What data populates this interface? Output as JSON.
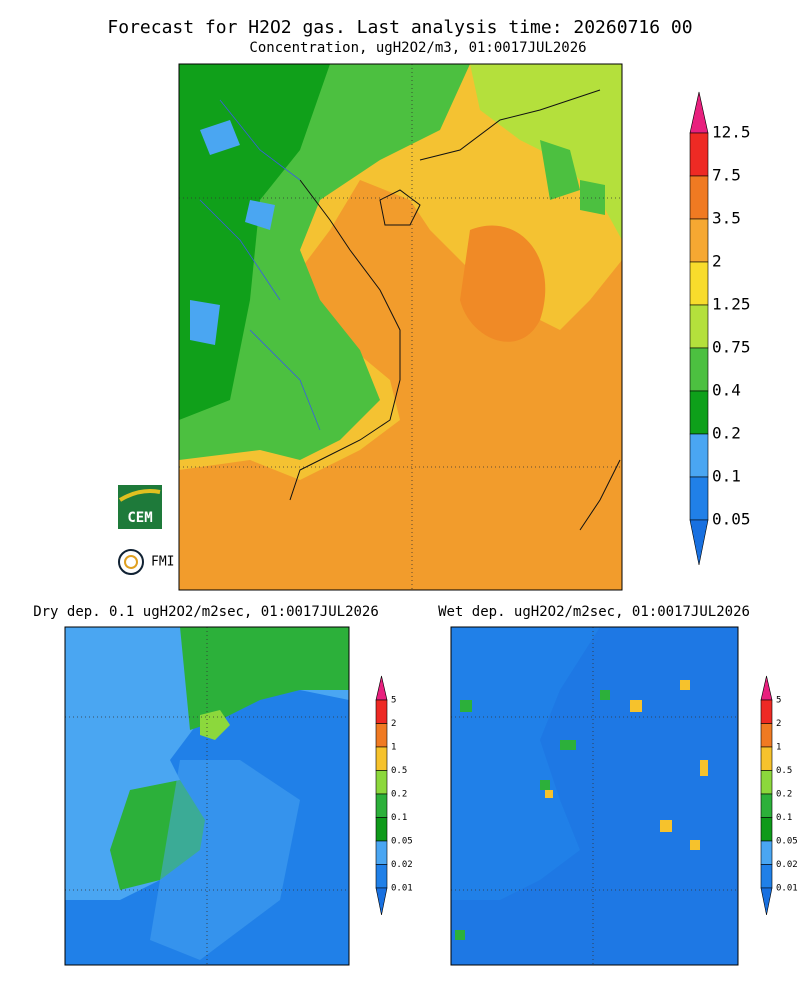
{
  "header": {
    "title": "Forecast for H2O2 gas. Last analysis time: 20260716 00",
    "subtitle": "Concentration, ugH2O2/m3, 01:0017JUL2026"
  },
  "main_legend": {
    "levels": [
      "12.5",
      "7.5",
      "3.5",
      "2",
      "1.25",
      "0.75",
      "0.4",
      "0.2",
      "0.1",
      "0.05"
    ],
    "colors": [
      "#e8207e",
      "#ee2a24",
      "#f07a22",
      "#f6a832",
      "#f8dc2c",
      "#b4e03c",
      "#4cc040",
      "#0ea01a",
      "#4aa6f2",
      "#2080e8",
      "#1870e0"
    ]
  },
  "panels": [
    {
      "title": "Dry dep. 0.1 ugH2O2/m2sec, 01:0017JUL2026"
    },
    {
      "title": "Wet dep. ugH2O2/m2sec, 01:0017JUL2026"
    }
  ],
  "small_legend": {
    "levels": [
      "5",
      "2",
      "1",
      "0.5",
      "0.2",
      "0.1",
      "0.05",
      "0.02",
      "0.01"
    ],
    "colors": [
      "#e8207e",
      "#ee2a24",
      "#f07a22",
      "#f6c22c",
      "#8cd83c",
      "#2cb03a",
      "#0e9a1a",
      "#4aa6f2",
      "#2080e8",
      "#1870e0"
    ]
  },
  "logos": [
    "CEM",
    "FMI"
  ]
}
